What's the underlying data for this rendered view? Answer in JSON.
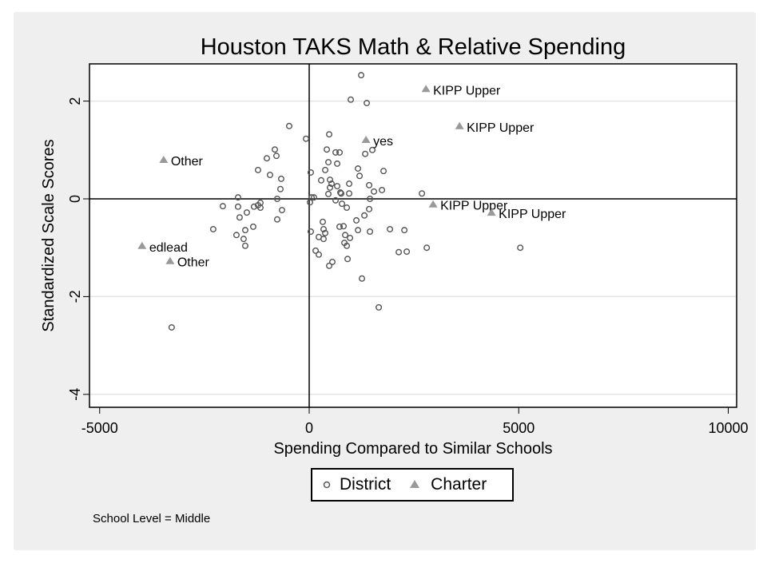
{
  "chart_data": {
    "type": "scatter",
    "title": "Houston TAKS Math & Relative Spending",
    "xlabel": "Spending Compared to Similar Schools",
    "ylabel": "Standardized Scale Scores",
    "xlim": [
      -5500,
      10500
    ],
    "ylim": [
      -4.3,
      2.75
    ],
    "xticks": [
      -5000,
      0,
      5000,
      10000
    ],
    "yticks": [
      -4,
      -2,
      0,
      2
    ],
    "xtick_labels": [
      "-5000",
      "0",
      "5000",
      "10000"
    ],
    "ytick_labels": [
      "-4",
      "-2",
      "0",
      "2"
    ],
    "grid": "horizontal",
    "reference_lines": {
      "x": 0,
      "y": 0
    },
    "legend_position": "bottom-center",
    "note": "School Level = Middle",
    "series": [
      {
        "name": "District",
        "marker": "hollow-circle",
        "color": "#555555",
        "points": [
          [
            -477,
            1.49
          ],
          [
            -76,
            1.23
          ],
          [
            -820,
            1.01
          ],
          [
            -782,
            0.88
          ],
          [
            -1011,
            0.83
          ],
          [
            -1221,
            0.59
          ],
          [
            -935,
            0.49
          ],
          [
            -668,
            0.41
          ],
          [
            -687,
            0.2
          ],
          [
            -1698,
            0.03
          ],
          [
            -763,
            0.0
          ],
          [
            -2061,
            -0.15
          ],
          [
            -1698,
            -0.16
          ],
          [
            -1488,
            -0.28
          ],
          [
            -1317,
            -0.16
          ],
          [
            -1164,
            -0.08
          ],
          [
            -1221,
            -0.13
          ],
          [
            -1164,
            -0.18
          ],
          [
            -649,
            -0.23
          ],
          [
            -1660,
            -0.38
          ],
          [
            -763,
            -0.42
          ],
          [
            -1336,
            -0.57
          ],
          [
            -2290,
            -0.62
          ],
          [
            -1526,
            -0.64
          ],
          [
            -1736,
            -0.74
          ],
          [
            -1565,
            -0.82
          ],
          [
            -1526,
            -0.96
          ],
          [
            477,
            1.32
          ],
          [
            420,
            1.01
          ],
          [
            630,
            0.95
          ],
          [
            725,
            0.95
          ],
          [
            458,
            0.75
          ],
          [
            668,
            0.72
          ],
          [
            38,
            0.54
          ],
          [
            382,
            0.59
          ],
          [
            286,
            0.38
          ],
          [
            496,
            0.39
          ],
          [
            534,
            0.31
          ],
          [
            496,
            0.23
          ],
          [
            668,
            0.26
          ],
          [
            954,
            0.31
          ],
          [
            458,
            0.1
          ],
          [
            744,
            0.13
          ],
          [
            57,
            0.03
          ],
          [
            114,
            0.03
          ],
          [
            19,
            -0.07
          ],
          [
            630,
            -0.03
          ],
          [
            782,
            -0.1
          ],
          [
            897,
            -0.18
          ],
          [
            324,
            -0.47
          ],
          [
            38,
            -0.67
          ],
          [
            343,
            -0.62
          ],
          [
            382,
            -0.7
          ],
          [
            229,
            -0.78
          ],
          [
            343,
            -0.82
          ],
          [
            725,
            -0.57
          ],
          [
            820,
            -0.56
          ],
          [
            859,
            -0.74
          ],
          [
            840,
            -0.9
          ],
          [
            897,
            -0.96
          ],
          [
            153,
            -1.06
          ],
          [
            229,
            -1.14
          ],
          [
            916,
            -1.23
          ],
          [
            553,
            -1.29
          ],
          [
            477,
            -1.37
          ],
          [
            1240,
            2.53
          ],
          [
            992,
            2.03
          ],
          [
            1374,
            1.96
          ],
          [
            1336,
            0.92
          ],
          [
            1507,
            1.0
          ],
          [
            1164,
            0.62
          ],
          [
            1202,
            0.47
          ],
          [
            1774,
            0.57
          ],
          [
            954,
            0.11
          ],
          [
            1431,
            0.28
          ],
          [
            1545,
            0.15
          ],
          [
            1736,
            0.18
          ],
          [
            2690,
            0.11
          ],
          [
            1450,
            0.0
          ],
          [
            1431,
            -0.21
          ],
          [
            1317,
            -0.34
          ],
          [
            1126,
            -0.44
          ],
          [
            1164,
            -0.64
          ],
          [
            1450,
            -0.67
          ],
          [
            1927,
            -0.62
          ],
          [
            2271,
            -0.64
          ],
          [
            973,
            -0.8
          ],
          [
            1259,
            -1.63
          ],
          [
            2137,
            -1.09
          ],
          [
            2328,
            -1.08
          ],
          [
            2805,
            -1.0
          ],
          [
            1660,
            -2.22
          ],
          [
            -3282,
            -2.63
          ],
          [
            5037,
            -1.0
          ],
          [
            763,
            0.11
          ]
        ]
      },
      {
        "name": "Charter",
        "marker": "filled-triangle",
        "color": "#999999",
        "points": [
          [
            2786,
            2.25,
            "KIPP Upper"
          ],
          [
            3587,
            1.49,
            "KIPP Upper"
          ],
          [
            1355,
            1.21,
            "yes"
          ],
          [
            -3473,
            0.8,
            "Other"
          ],
          [
            -3988,
            -0.96,
            "edlead"
          ],
          [
            -3320,
            -1.27,
            "Other"
          ],
          [
            2957,
            -0.11,
            "KIPP Upper"
          ],
          [
            4350,
            -0.28,
            "KIPP Upper"
          ]
        ]
      }
    ]
  }
}
